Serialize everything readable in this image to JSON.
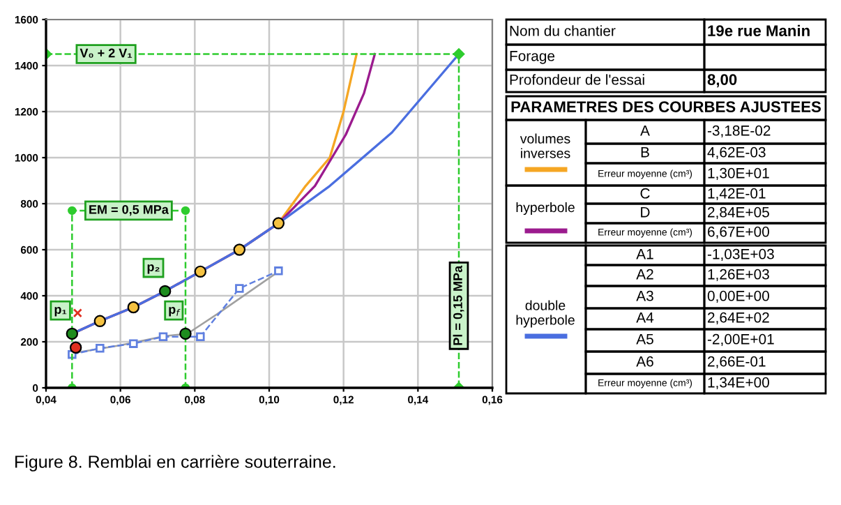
{
  "chart_data": [
    {
      "type": "scatter",
      "xlim": [
        0.04,
        0.16
      ],
      "ylim": [
        0,
        1600
      ],
      "xticks": [
        {
          "value": 0.04,
          "label": "0,04"
        },
        {
          "value": 0.06,
          "label": "0,06"
        },
        {
          "value": 0.08,
          "label": "0,08"
        },
        {
          "value": 0.1,
          "label": "0,10"
        },
        {
          "value": 0.12,
          "label": "0,12"
        },
        {
          "value": 0.14,
          "label": "0,14"
        },
        {
          "value": 0.16,
          "label": "0,16"
        }
      ],
      "yticks": [
        0,
        200,
        400,
        600,
        800,
        1000,
        1200,
        1400,
        1600
      ],
      "grid": true,
      "legend": "right",
      "series": [
        {
          "type": "line",
          "color": "#a0a0a0",
          "x": [
            0.047,
            0.06,
            0.072,
            0.078,
            0.086,
            0.1025
          ],
          "values": [
            150,
            185,
            225,
            235,
            320,
            505
          ]
        },
        {
          "type": "line",
          "color": "#6080e0",
          "marker": "square",
          "line_style": "dashed",
          "x": [
            0.047,
            0.0545,
            0.0635,
            0.0715,
            0.0815,
            0.092,
            0.1025
          ],
          "values": [
            145,
            172,
            192,
            222,
            222,
            432,
            508
          ]
        },
        {
          "type": "line",
          "name": "volumes inverses",
          "color": "#f5a623",
          "x": [
            0.047,
            0.0545,
            0.0635,
            0.072,
            0.0815,
            0.092,
            0.1025,
            0.1098,
            0.1163,
            0.12,
            0.1235
          ],
          "values": [
            235,
            290,
            350,
            420,
            505,
            600,
            715,
            877,
            1000,
            1200,
            1450
          ]
        },
        {
          "type": "line",
          "name": "hyperbole",
          "color": "#9b1b8e",
          "x": [
            0.047,
            0.0545,
            0.0635,
            0.072,
            0.0815,
            0.092,
            0.1025,
            0.1123,
            0.1206,
            0.1255,
            0.1284
          ],
          "values": [
            235,
            290,
            350,
            420,
            505,
            600,
            715,
            877,
            1100,
            1280,
            1450
          ]
        },
        {
          "type": "line",
          "name": "double hyperbole",
          "color": "#4a6ee0",
          "x": [
            0.047,
            0.0545,
            0.0635,
            0.072,
            0.0815,
            0.092,
            0.1025,
            0.1163,
            0.133,
            0.151
          ],
          "values": [
            235,
            290,
            350,
            420,
            505,
            600,
            715,
            877,
            1109,
            1450
          ]
        },
        {
          "type": "line",
          "color": "#2ecc2e",
          "marker": "diamond",
          "line_style": "dashed",
          "x": [
            0.04,
            0.151,
            0.151
          ],
          "values": [
            1450,
            1450,
            0
          ]
        },
        {
          "type": "line",
          "color": "#2ecc2e",
          "marker": "circle",
          "line_style": "dashed",
          "x": [
            0.047,
            0.047,
            0.0775,
            0.0775
          ],
          "values": [
            0,
            770,
            770,
            0
          ]
        },
        {
          "type": "scatter",
          "color": "#f5c242",
          "marker": "circle",
          "x": [
            0.0545,
            0.0635,
            0.0815,
            0.092,
            0.1025
          ],
          "values": [
            290,
            350,
            505,
            600,
            715
          ]
        },
        {
          "type": "scatter",
          "color": "#1e8c1e",
          "marker": "circle",
          "x": [
            0.047,
            0.072,
            0.0775
          ],
          "values": [
            235,
            420,
            235
          ]
        },
        {
          "type": "scatter",
          "color": "#e03020",
          "marker": "circle",
          "x": [
            0.048
          ],
          "values": [
            175
          ]
        },
        {
          "type": "scatter",
          "color": "#e03020",
          "marker": "cross",
          "x": [
            0.0485
          ],
          "values": [
            325
          ]
        }
      ],
      "annotations": [
        {
          "text": "V₀ + 2 V₁",
          "x": 0.047,
          "y": 1450
        },
        {
          "text": "Pl = 0,15 MPa",
          "x": 0.151,
          "y": 250
        },
        {
          "text": "EM = 0,5 MPa",
          "x": 0.0622,
          "y": 770
        },
        {
          "text": "p₁",
          "x": 0.047,
          "y": 235
        },
        {
          "text": "p₂",
          "x": 0.072,
          "y": 420
        },
        {
          "text": "p$_{f}$",
          "x": 0.0775,
          "y": 235
        },
        "Figure 8. Remblai en carrière souterraine."
      ]
    },
    {
      "type": "other",
      "annotations": [
        "Nom du chantier",
        "19e rue Manin",
        "Forage",
        "Profondeur de l'essai",
        "8,00",
        "PARAMETRES DES COURBES AJUSTEES",
        "A",
        "-3,18E-02",
        "B",
        "4,62E-03",
        "Erreur moyenne (cm³)",
        "1,30E+01",
        "C",
        "1,42E-01",
        "D",
        "2,84E+05",
        "Erreur moyenne (cm³)",
        "6,67E+00",
        "A1",
        "-1,03E+03",
        "A2",
        "1,26E+03",
        "A3",
        "0,00E+00",
        "A4",
        "2,64E+02",
        "A5",
        "-2,00E+01",
        "A6",
        "2,66E-01",
        "Erreur moyenne (cm³)",
        "1,34E+00"
      ]
    }
  ]
}
